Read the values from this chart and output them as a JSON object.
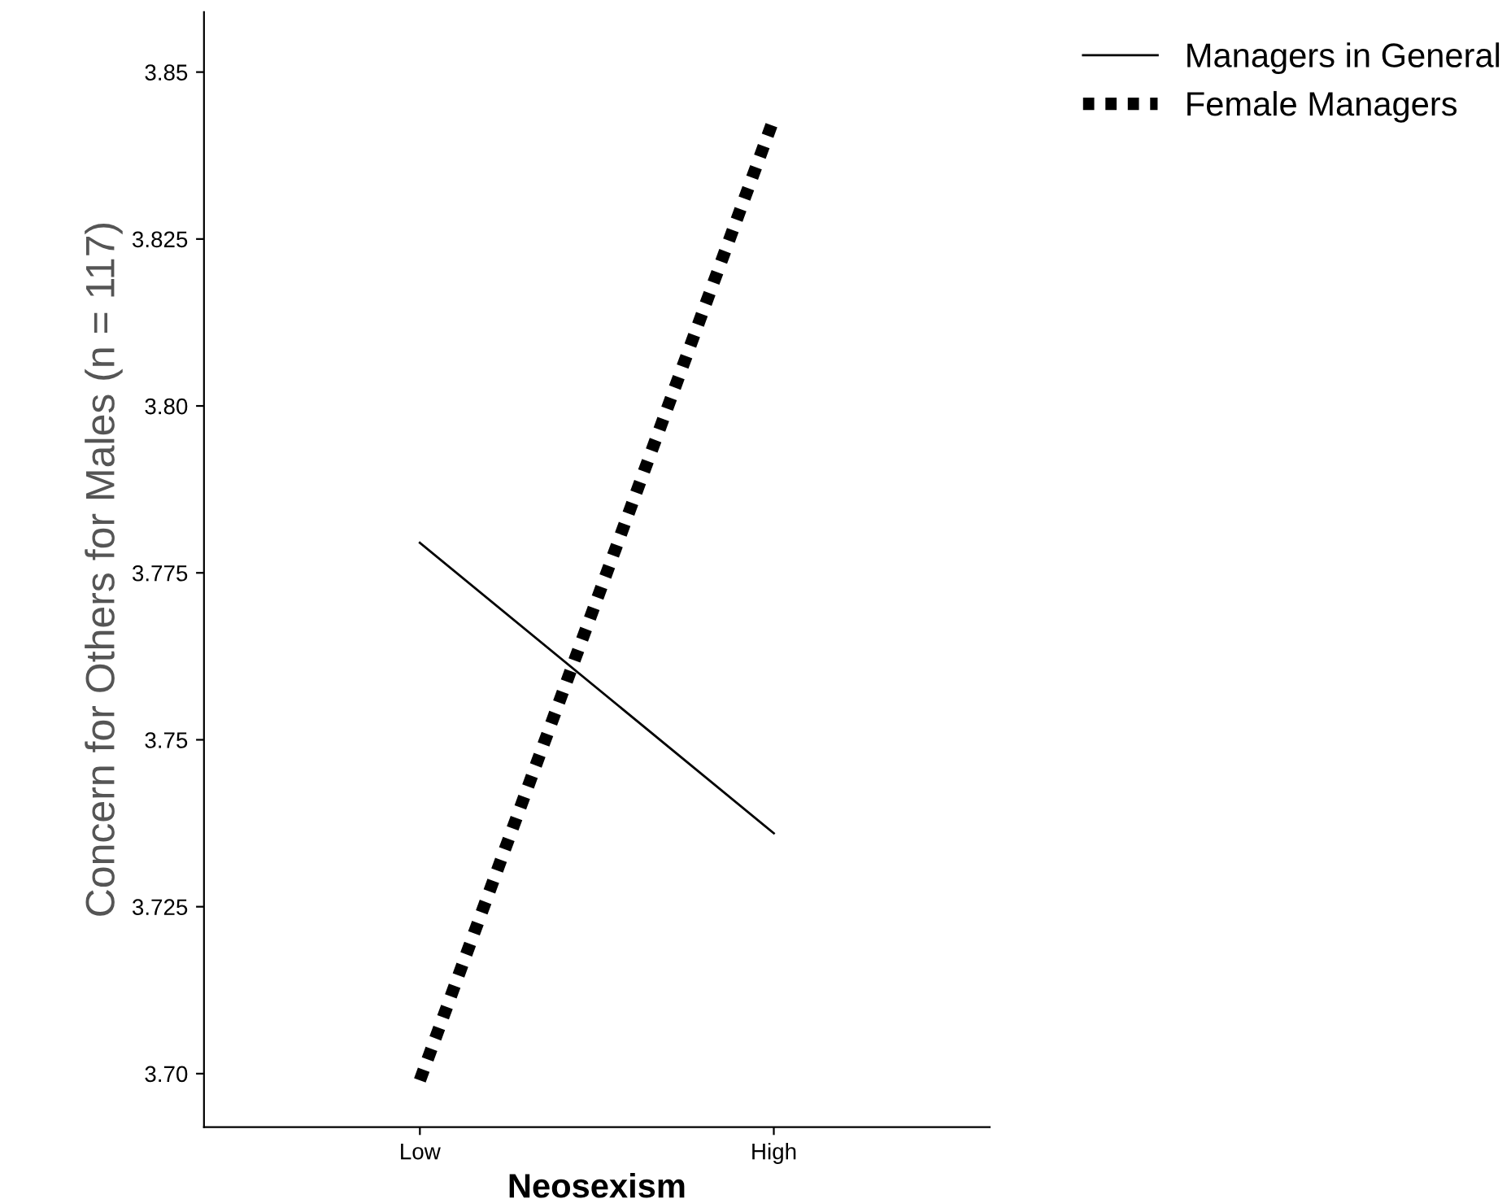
{
  "chart_data": {
    "type": "line",
    "xlabel": "Neosexism",
    "ylabel": "Concern for Others for Males (n = 117)",
    "categories": [
      "Low",
      "High"
    ],
    "series": [
      {
        "name": "Managers in General",
        "color": "#000000",
        "line_style": "solid",
        "values": [
          3.7795,
          3.736
        ]
      },
      {
        "name": "Female Managers",
        "color": "#000000",
        "line_style": "dotted",
        "values": [
          3.699,
          3.843
        ]
      }
    ],
    "ylim": [
      3.692,
      3.859
    ],
    "yticks": [
      {
        "value": 3.7,
        "label": "3.70"
      },
      {
        "value": 3.725,
        "label": "3.725"
      },
      {
        "value": 3.75,
        "label": "3.75"
      },
      {
        "value": 3.775,
        "label": "3.775"
      },
      {
        "value": 3.8,
        "label": "3.80"
      },
      {
        "value": 3.825,
        "label": "3.825"
      },
      {
        "value": 3.85,
        "label": "3.85"
      }
    ],
    "grid": false,
    "legend": "top right"
  }
}
